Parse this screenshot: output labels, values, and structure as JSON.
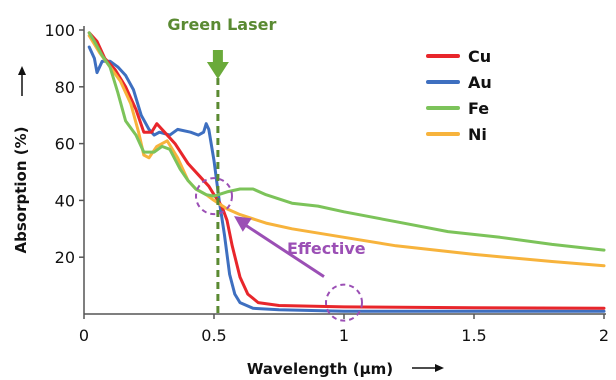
{
  "chart_data": {
    "type": "line",
    "xlabel": "Wavelength (µm)",
    "ylabel": "Absorption (%)",
    "xlim": [
      0,
      2
    ],
    "ylim": [
      0,
      100
    ],
    "x_ticks": [
      "0",
      "0.5",
      "1",
      "1.5",
      "2"
    ],
    "y_ticks": [
      "20",
      "40",
      "60",
      "80",
      "100"
    ],
    "grid": false,
    "legend_position": "top-right",
    "series": [
      {
        "name": "Cu",
        "color": "#e8262b",
        "points": [
          [
            0.02,
            99
          ],
          [
            0.05,
            96
          ],
          [
            0.08,
            90
          ],
          [
            0.12,
            86
          ],
          [
            0.16,
            80
          ],
          [
            0.2,
            72
          ],
          [
            0.23,
            64
          ],
          [
            0.26,
            64
          ],
          [
            0.28,
            67
          ],
          [
            0.31,
            64
          ],
          [
            0.35,
            60
          ],
          [
            0.4,
            53
          ],
          [
            0.45,
            48
          ],
          [
            0.48,
            45
          ],
          [
            0.5,
            42
          ],
          [
            0.53,
            38
          ],
          [
            0.55,
            33
          ],
          [
            0.57,
            24
          ],
          [
            0.6,
            13
          ],
          [
            0.63,
            7
          ],
          [
            0.67,
            4
          ],
          [
            0.75,
            3
          ],
          [
            1.0,
            2.5
          ],
          [
            1.5,
            2.2
          ],
          [
            2.0,
            2
          ]
        ]
      },
      {
        "name": "Au",
        "color": "#3e6fc0",
        "points": [
          [
            0.02,
            94
          ],
          [
            0.04,
            90
          ],
          [
            0.05,
            85
          ],
          [
            0.07,
            89
          ],
          [
            0.1,
            89
          ],
          [
            0.13,
            87
          ],
          [
            0.16,
            84
          ],
          [
            0.19,
            79
          ],
          [
            0.22,
            70
          ],
          [
            0.25,
            65
          ],
          [
            0.27,
            63
          ],
          [
            0.29,
            64
          ],
          [
            0.33,
            63
          ],
          [
            0.36,
            65
          ],
          [
            0.41,
            64
          ],
          [
            0.44,
            63
          ],
          [
            0.46,
            64
          ],
          [
            0.47,
            67
          ],
          [
            0.48,
            65
          ],
          [
            0.5,
            54
          ],
          [
            0.52,
            40
          ],
          [
            0.54,
            28
          ],
          [
            0.56,
            14
          ],
          [
            0.58,
            7
          ],
          [
            0.6,
            4
          ],
          [
            0.65,
            2
          ],
          [
            0.75,
            1.5
          ],
          [
            1.0,
            1
          ],
          [
            1.5,
            1
          ],
          [
            2.0,
            1
          ]
        ]
      },
      {
        "name": "Fe",
        "color": "#7cc35a",
        "points": [
          [
            0.02,
            99
          ],
          [
            0.04,
            96
          ],
          [
            0.07,
            91
          ],
          [
            0.1,
            87
          ],
          [
            0.13,
            78
          ],
          [
            0.16,
            68
          ],
          [
            0.2,
            63
          ],
          [
            0.23,
            57
          ],
          [
            0.27,
            57
          ],
          [
            0.3,
            59
          ],
          [
            0.33,
            58
          ],
          [
            0.37,
            51
          ],
          [
            0.4,
            47
          ],
          [
            0.43,
            44
          ],
          [
            0.47,
            42
          ],
          [
            0.5,
            41.5
          ],
          [
            0.55,
            43
          ],
          [
            0.6,
            44
          ],
          [
            0.65,
            44
          ],
          [
            0.7,
            42
          ],
          [
            0.8,
            39
          ],
          [
            0.9,
            38
          ],
          [
            1.0,
            36
          ],
          [
            1.2,
            32.5
          ],
          [
            1.4,
            29
          ],
          [
            1.6,
            27
          ],
          [
            1.8,
            24.5
          ],
          [
            2.0,
            22.5
          ]
        ]
      },
      {
        "name": "Ni",
        "color": "#f7b33c",
        "points": [
          [
            0.02,
            98
          ],
          [
            0.06,
            92
          ],
          [
            0.1,
            87
          ],
          [
            0.14,
            82
          ],
          [
            0.18,
            74
          ],
          [
            0.21,
            64
          ],
          [
            0.23,
            56
          ],
          [
            0.25,
            55
          ],
          [
            0.28,
            59
          ],
          [
            0.32,
            61
          ],
          [
            0.36,
            55
          ],
          [
            0.4,
            47
          ],
          [
            0.43,
            44
          ],
          [
            0.47,
            42
          ],
          [
            0.5,
            40
          ],
          [
            0.55,
            37
          ],
          [
            0.6,
            35
          ],
          [
            0.7,
            32
          ],
          [
            0.8,
            30
          ],
          [
            1.0,
            27
          ],
          [
            1.2,
            24
          ],
          [
            1.5,
            21
          ],
          [
            1.8,
            18.5
          ],
          [
            2.0,
            17
          ]
        ]
      }
    ],
    "annotations": {
      "laser_label": "Green Laser",
      "laser_x": 0.515,
      "laser_color": "#5a8a32",
      "effective_label": "Effective",
      "effective_color": "#9b4fb5",
      "circle_points": [
        [
          0.5,
          41.5
        ],
        [
          1.0,
          4
        ]
      ]
    }
  }
}
